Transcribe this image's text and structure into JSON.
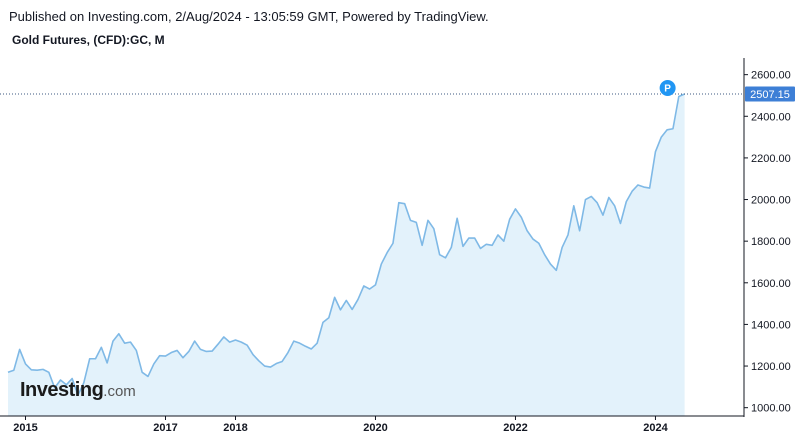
{
  "header": {
    "published": "Published on Investing.com, 2/Aug/2024 - 13:05:59 GMT, Powered by TradingView.",
    "symbol": "Gold Futures, (CFD):GC, M"
  },
  "logo": {
    "main": "Investing",
    "suffix": ".com"
  },
  "colors": {
    "line": "#7fb9e6",
    "fill": "#e3f2fb",
    "last_badge": "#3d7fd6",
    "marker": "#2196f3",
    "grid": "#b2b5be"
  },
  "marker": {
    "label": "P",
    "icon": "p-marker-icon"
  },
  "chart_data": {
    "type": "area",
    "title": "Gold Futures, (CFD):GC, M",
    "xlabel": "",
    "ylabel": "",
    "ylim": [
      960,
      2680
    ],
    "y_ticks": [
      1000,
      1200,
      1400,
      1600,
      1800,
      2000,
      2200,
      2400,
      2600
    ],
    "y_tick_labels": [
      "1000.00",
      "1200.00",
      "1400.00",
      "1600.00",
      "1800.00",
      "2000.00",
      "2200.00",
      "2400.00",
      "2600.00"
    ],
    "x_ticks": [
      {
        "label": "2015",
        "index": 3
      },
      {
        "label": "2017",
        "index": 27
      },
      {
        "label": "2018",
        "index": 39
      },
      {
        "label": "2020",
        "index": 63
      },
      {
        "label": "2022",
        "index": 87
      },
      {
        "label": "2024",
        "index": 111
      }
    ],
    "last_value": 2507.15,
    "last_value_label": "2507.15",
    "grid": false,
    "series": [
      {
        "values": [
          1170,
          1180,
          1280,
          1210,
          1182,
          1180,
          1184,
          1170,
          1095,
          1133,
          1110,
          1140,
          1060,
          1120,
          1235,
          1235,
          1290,
          1215,
          1320,
          1355,
          1310,
          1315,
          1275,
          1170,
          1150,
          1210,
          1250,
          1248,
          1265,
          1275,
          1240,
          1270,
          1320,
          1280,
          1270,
          1272,
          1305,
          1340,
          1315,
          1325,
          1315,
          1300,
          1255,
          1225,
          1200,
          1195,
          1212,
          1222,
          1265,
          1320,
          1310,
          1295,
          1282,
          1310,
          1410,
          1432,
          1530,
          1470,
          1515,
          1472,
          1520,
          1585,
          1570,
          1590,
          1690,
          1745,
          1790,
          1985,
          1980,
          1900,
          1890,
          1780,
          1900,
          1860,
          1735,
          1720,
          1770,
          1910,
          1775,
          1815,
          1815,
          1765,
          1785,
          1780,
          1830,
          1800,
          1905,
          1955,
          1915,
          1850,
          1810,
          1790,
          1735,
          1690,
          1660,
          1770,
          1830,
          1970,
          1850,
          2000,
          2015,
          1985,
          1925,
          2010,
          1970,
          1885,
          1990,
          2040,
          2070,
          2060,
          2055,
          2230,
          2300,
          2335,
          2340,
          2495,
          2507.15
        ]
      }
    ]
  }
}
